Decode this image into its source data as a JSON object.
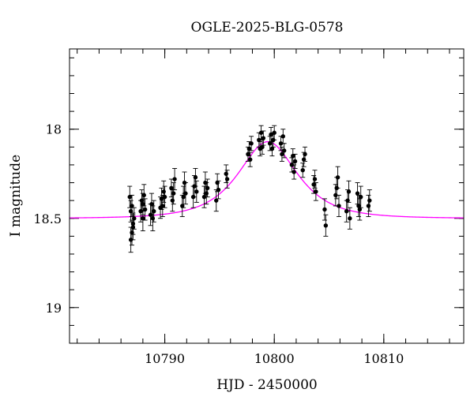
{
  "chart_data": {
    "type": "scatter",
    "title": "OGLE-2025-BLG-0578",
    "xlabel": "HJD - 2450000",
    "ylabel": "I magnitude",
    "xlim": [
      10781.3,
      10817.3
    ],
    "ylim": [
      19.2,
      17.55
    ],
    "y_inverted": true,
    "grid": false,
    "x_ticks": [
      {
        "value": 10790,
        "label": "10790"
      },
      {
        "value": 10800,
        "label": "10800"
      },
      {
        "value": 10810,
        "label": "10810"
      }
    ],
    "y_ticks": [
      {
        "value": 18.0,
        "label": "18"
      },
      {
        "value": 18.5,
        "label": "18.5"
      },
      {
        "value": 19.0,
        "label": "19"
      }
    ],
    "x_minor_step": 2,
    "y_minor_step": 0.1,
    "colors": {
      "data": "#000000",
      "model": "#ff00ff",
      "frame": "#000000"
    },
    "model": {
      "name": "",
      "t0": 10799.4,
      "tE": 3.6,
      "u0": 0.82,
      "baseline": 18.5
    },
    "series": [
      {
        "name": "",
        "style": "points-with-errorbars",
        "x": [
          10786.8,
          10786.9,
          10786.9,
          10787.0,
          10787.0,
          10787.1,
          10787.1,
          10787.2,
          10787.8,
          10787.9,
          10788.0,
          10788.0,
          10788.1,
          10788.2,
          10788.7,
          10788.8,
          10788.9,
          10789.0,
          10789.6,
          10789.7,
          10789.8,
          10789.9,
          10790.0,
          10790.6,
          10790.7,
          10790.8,
          10790.9,
          10791.6,
          10791.7,
          10791.8,
          10791.9,
          10792.6,
          10792.7,
          10792.8,
          10792.9,
          10793.6,
          10793.7,
          10793.8,
          10793.9,
          10794.7,
          10794.8,
          10794.9,
          10795.6,
          10795.7,
          10797.6,
          10797.7,
          10797.8,
          10797.9,
          10798.6,
          10798.7,
          10798.8,
          10798.9,
          10799.0,
          10799.6,
          10799.7,
          10799.8,
          10799.9,
          10800.0,
          10800.6,
          10800.7,
          10800.8,
          10800.9,
          10801.6,
          10801.7,
          10801.8,
          10801.9,
          10802.6,
          10802.7,
          10802.8,
          10803.6,
          10803.7,
          10803.8,
          10804.6,
          10804.7,
          10805.6,
          10805.7,
          10805.8,
          10805.9,
          10806.6,
          10806.7,
          10806.8,
          10806.9,
          10807.6,
          10807.7,
          10807.8,
          10807.9,
          10808.6,
          10808.7
        ],
        "y": [
          18.38,
          18.46,
          18.62,
          18.58,
          18.43,
          18.55,
          18.53,
          18.5,
          18.46,
          18.4,
          18.5,
          18.42,
          18.37,
          18.45,
          18.48,
          18.42,
          18.5,
          18.46,
          18.44,
          18.39,
          18.43,
          18.35,
          18.38,
          18.33,
          18.4,
          18.36,
          18.28,
          18.43,
          18.38,
          18.3,
          18.36,
          18.38,
          18.32,
          18.27,
          18.35,
          18.38,
          18.3,
          18.36,
          18.33,
          18.4,
          18.3,
          18.34,
          18.25,
          18.28,
          18.14,
          18.11,
          18.17,
          18.08,
          18.06,
          18.11,
          18.02,
          18.1,
          18.05,
          18.08,
          18.03,
          18.11,
          18.06,
          18.02,
          18.08,
          18.14,
          18.04,
          18.12,
          18.2,
          18.15,
          18.24,
          18.18,
          18.23,
          18.17,
          18.14,
          18.31,
          18.28,
          18.35,
          18.45,
          18.54,
          18.37,
          18.33,
          18.27,
          18.43,
          18.46,
          18.4,
          18.35,
          18.5,
          18.36,
          18.43,
          18.45,
          18.38,
          18.43,
          18.4
        ],
        "yerr": [
          0.06,
          0.06,
          0.07,
          0.07,
          0.06,
          0.07,
          0.06,
          0.06,
          0.06,
          0.06,
          0.07,
          0.06,
          0.06,
          0.06,
          0.06,
          0.06,
          0.07,
          0.06,
          0.06,
          0.06,
          0.06,
          0.06,
          0.06,
          0.05,
          0.06,
          0.06,
          0.06,
          0.06,
          0.06,
          0.06,
          0.06,
          0.06,
          0.06,
          0.05,
          0.06,
          0.06,
          0.06,
          0.06,
          0.05,
          0.06,
          0.05,
          0.05,
          0.05,
          0.05,
          0.04,
          0.04,
          0.04,
          0.04,
          0.04,
          0.04,
          0.04,
          0.04,
          0.04,
          0.04,
          0.04,
          0.04,
          0.04,
          0.04,
          0.04,
          0.04,
          0.04,
          0.04,
          0.04,
          0.04,
          0.04,
          0.04,
          0.04,
          0.04,
          0.04,
          0.05,
          0.05,
          0.05,
          0.06,
          0.06,
          0.06,
          0.06,
          0.06,
          0.06,
          0.06,
          0.06,
          0.06,
          0.06,
          0.06,
          0.06,
          0.06,
          0.06,
          0.06,
          0.06
        ]
      }
    ]
  }
}
